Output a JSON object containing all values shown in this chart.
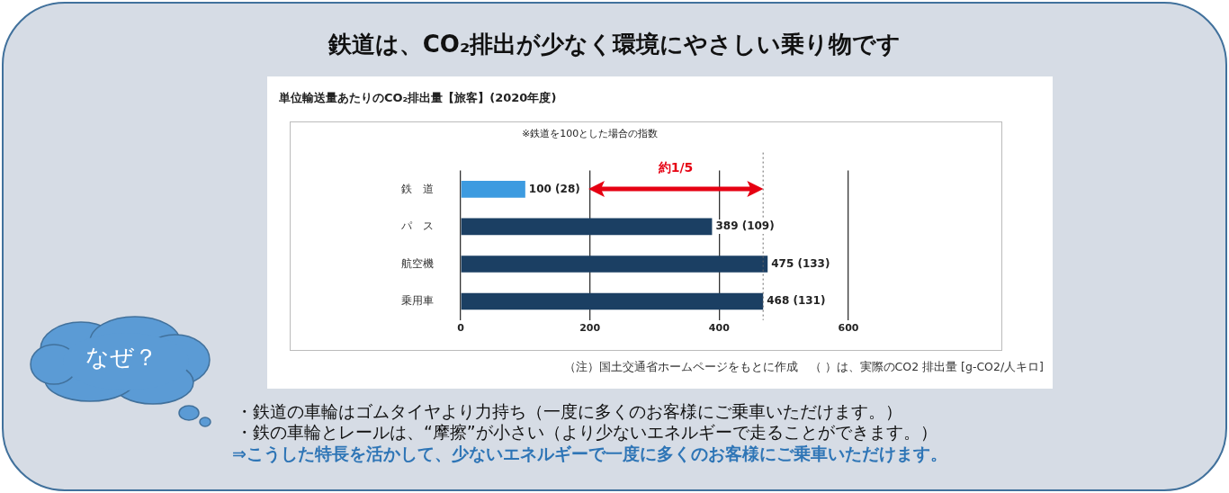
{
  "chart_data": {
    "type": "bar",
    "orientation": "horizontal",
    "title": "鉄道は、CO₂排出が少なく環境にやさしい乗り物です",
    "subtitle": "単位輸送量あたりのCO₂排出量【旅客】(2020年度)",
    "categories": [
      "鉄　道",
      "パ　ス",
      "航空機",
      "乗用車"
    ],
    "values": [
      100,
      389,
      475,
      468
    ],
    "colors": [
      "#3d9be0",
      "#1b3f63",
      "#1b3f63",
      "#1b3f63"
    ],
    "value_labels": [
      "100 (28)",
      "389 (109)",
      "475 (133)",
      "468 (131)"
    ],
    "xlim": [
      0,
      600
    ],
    "xticks": [
      0,
      200,
      400,
      600
    ],
    "grid": "x",
    "legend": false,
    "ref_lines": [
      {
        "axis": "x",
        "value": 468,
        "color": "#666666",
        "line_style": "dotted"
      }
    ],
    "annotations": [
      "※鉄道を100とした場合の指数",
      "約1/5",
      "（注）国土交通省ホームページをもとに作成　（ ）は、実際のCO2 排出量 [g-CO2/人キロ]",
      "なぜ？",
      "・鉄道の車輪はゴムタイヤより力持ち（一度に多くのお客様にご乗車いただけます。）",
      "・鉄の車輪とレールは、“摩擦”が小さい（より少ないエネルギーで走ることができます。）",
      "⇒こうした特長を活かして、少ないエネルギーで一度に多くのお客様にご乗車いただけます。"
    ]
  }
}
